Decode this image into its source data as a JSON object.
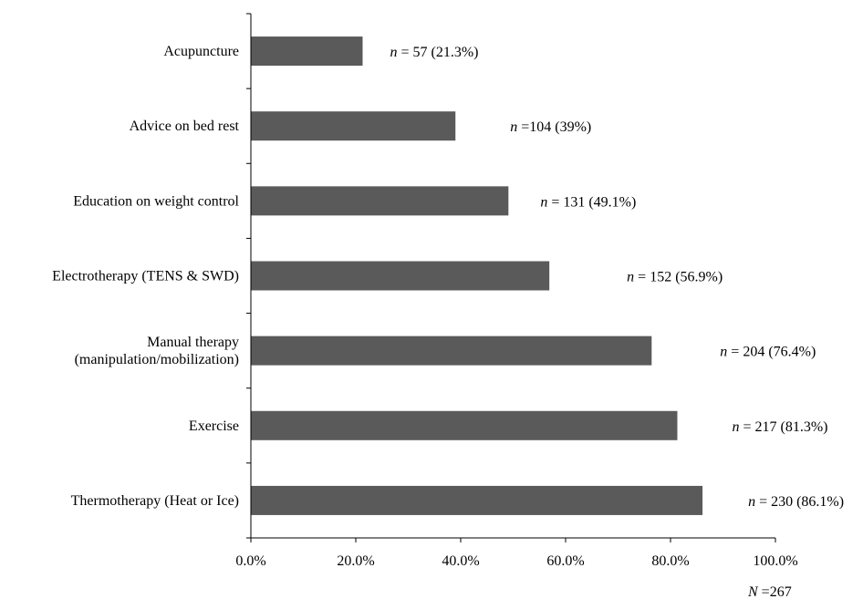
{
  "chart_data": {
    "type": "bar",
    "orientation": "horizontal",
    "categories": [
      [
        "Acupuncture"
      ],
      [
        "Advice on bed rest"
      ],
      [
        "Education on weight control"
      ],
      [
        "Electrotherapy (TENS & SWD)"
      ],
      [
        "Manual therapy",
        "(manipulation/mobilization)"
      ],
      [
        "Exercise"
      ],
      [
        "Thermotherapy (Heat or Ice)"
      ]
    ],
    "values": [
      21.3,
      39.0,
      49.1,
      56.9,
      76.4,
      81.3,
      86.1
    ],
    "data_labels": [
      {
        "n": "n",
        "text": " = 57 (21.3%)"
      },
      {
        "n": "n",
        "text": " =104 (39%)"
      },
      {
        "n": "n",
        "text": " = 131 (49.1%)"
      },
      {
        "n": "n",
        "text": " = 152 (56.9%)"
      },
      {
        "n": "n",
        "text": " = 204 (76.4%)"
      },
      {
        "n": "n",
        "text": " = 217 (81.3%)"
      },
      {
        "n": "n",
        "text": " = 230 (86.1%)"
      }
    ],
    "xlim": [
      0,
      100
    ],
    "xticks": [
      0,
      20,
      40,
      60,
      80,
      100
    ],
    "xtick_labels": [
      "0.0%",
      "20.0%",
      "40.0%",
      "60.0%",
      "80.0%",
      "100.0%"
    ],
    "total_label": {
      "n": "N",
      "text": " =267"
    },
    "bar_color": "#5a5a5a",
    "axis_color": "#000000",
    "grid": false,
    "legend": false
  }
}
